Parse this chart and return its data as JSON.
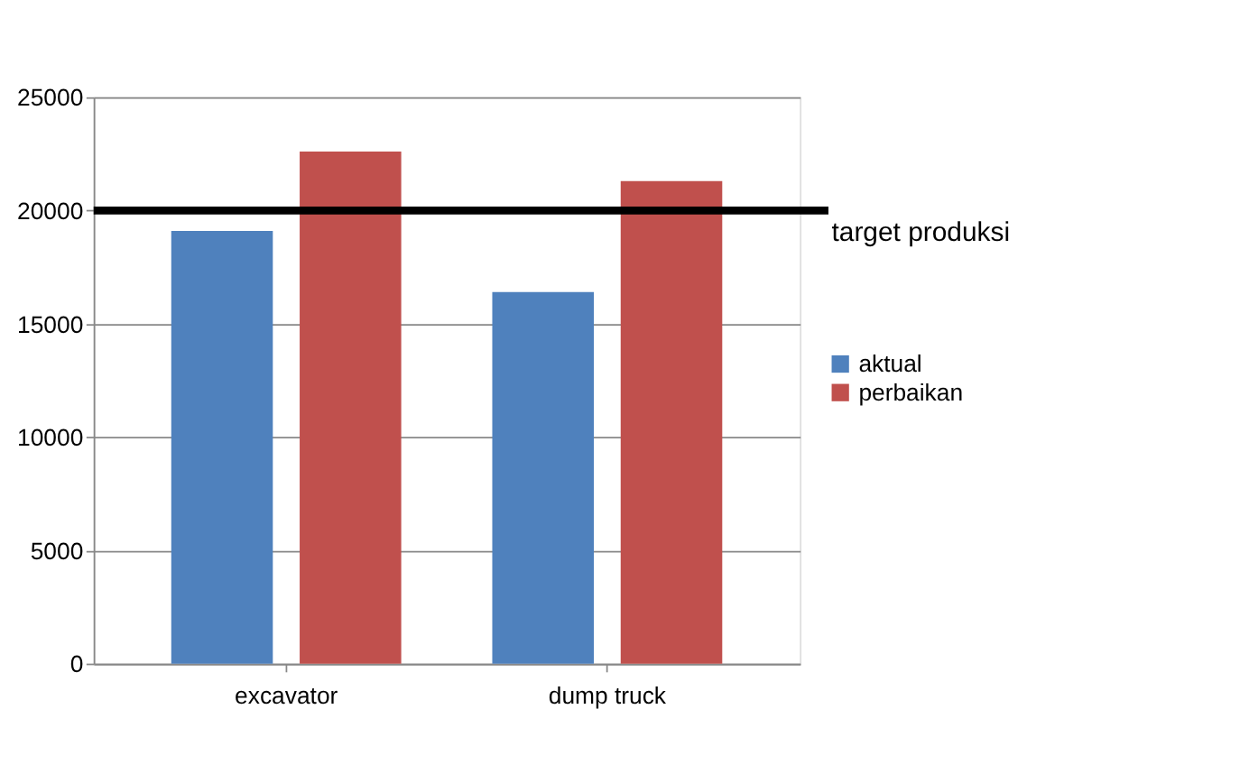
{
  "chart_data": {
    "type": "bar",
    "categories": [
      "excavator",
      "dump truck"
    ],
    "series": [
      {
        "name": "aktual",
        "color": "#4f81bd",
        "values": [
          19100,
          16400
        ]
      },
      {
        "name": "perbaikan",
        "color": "#c0504d",
        "values": [
          22600,
          21300
        ]
      }
    ],
    "ylim": [
      0,
      25000
    ],
    "yticks": [
      0,
      5000,
      10000,
      15000,
      20000,
      25000
    ],
    "grid": "y",
    "legend": "right",
    "ref_lines": [
      {
        "axis": "y",
        "value": 20000,
        "label": "target produksi",
        "color": "#000000"
      }
    ]
  }
}
